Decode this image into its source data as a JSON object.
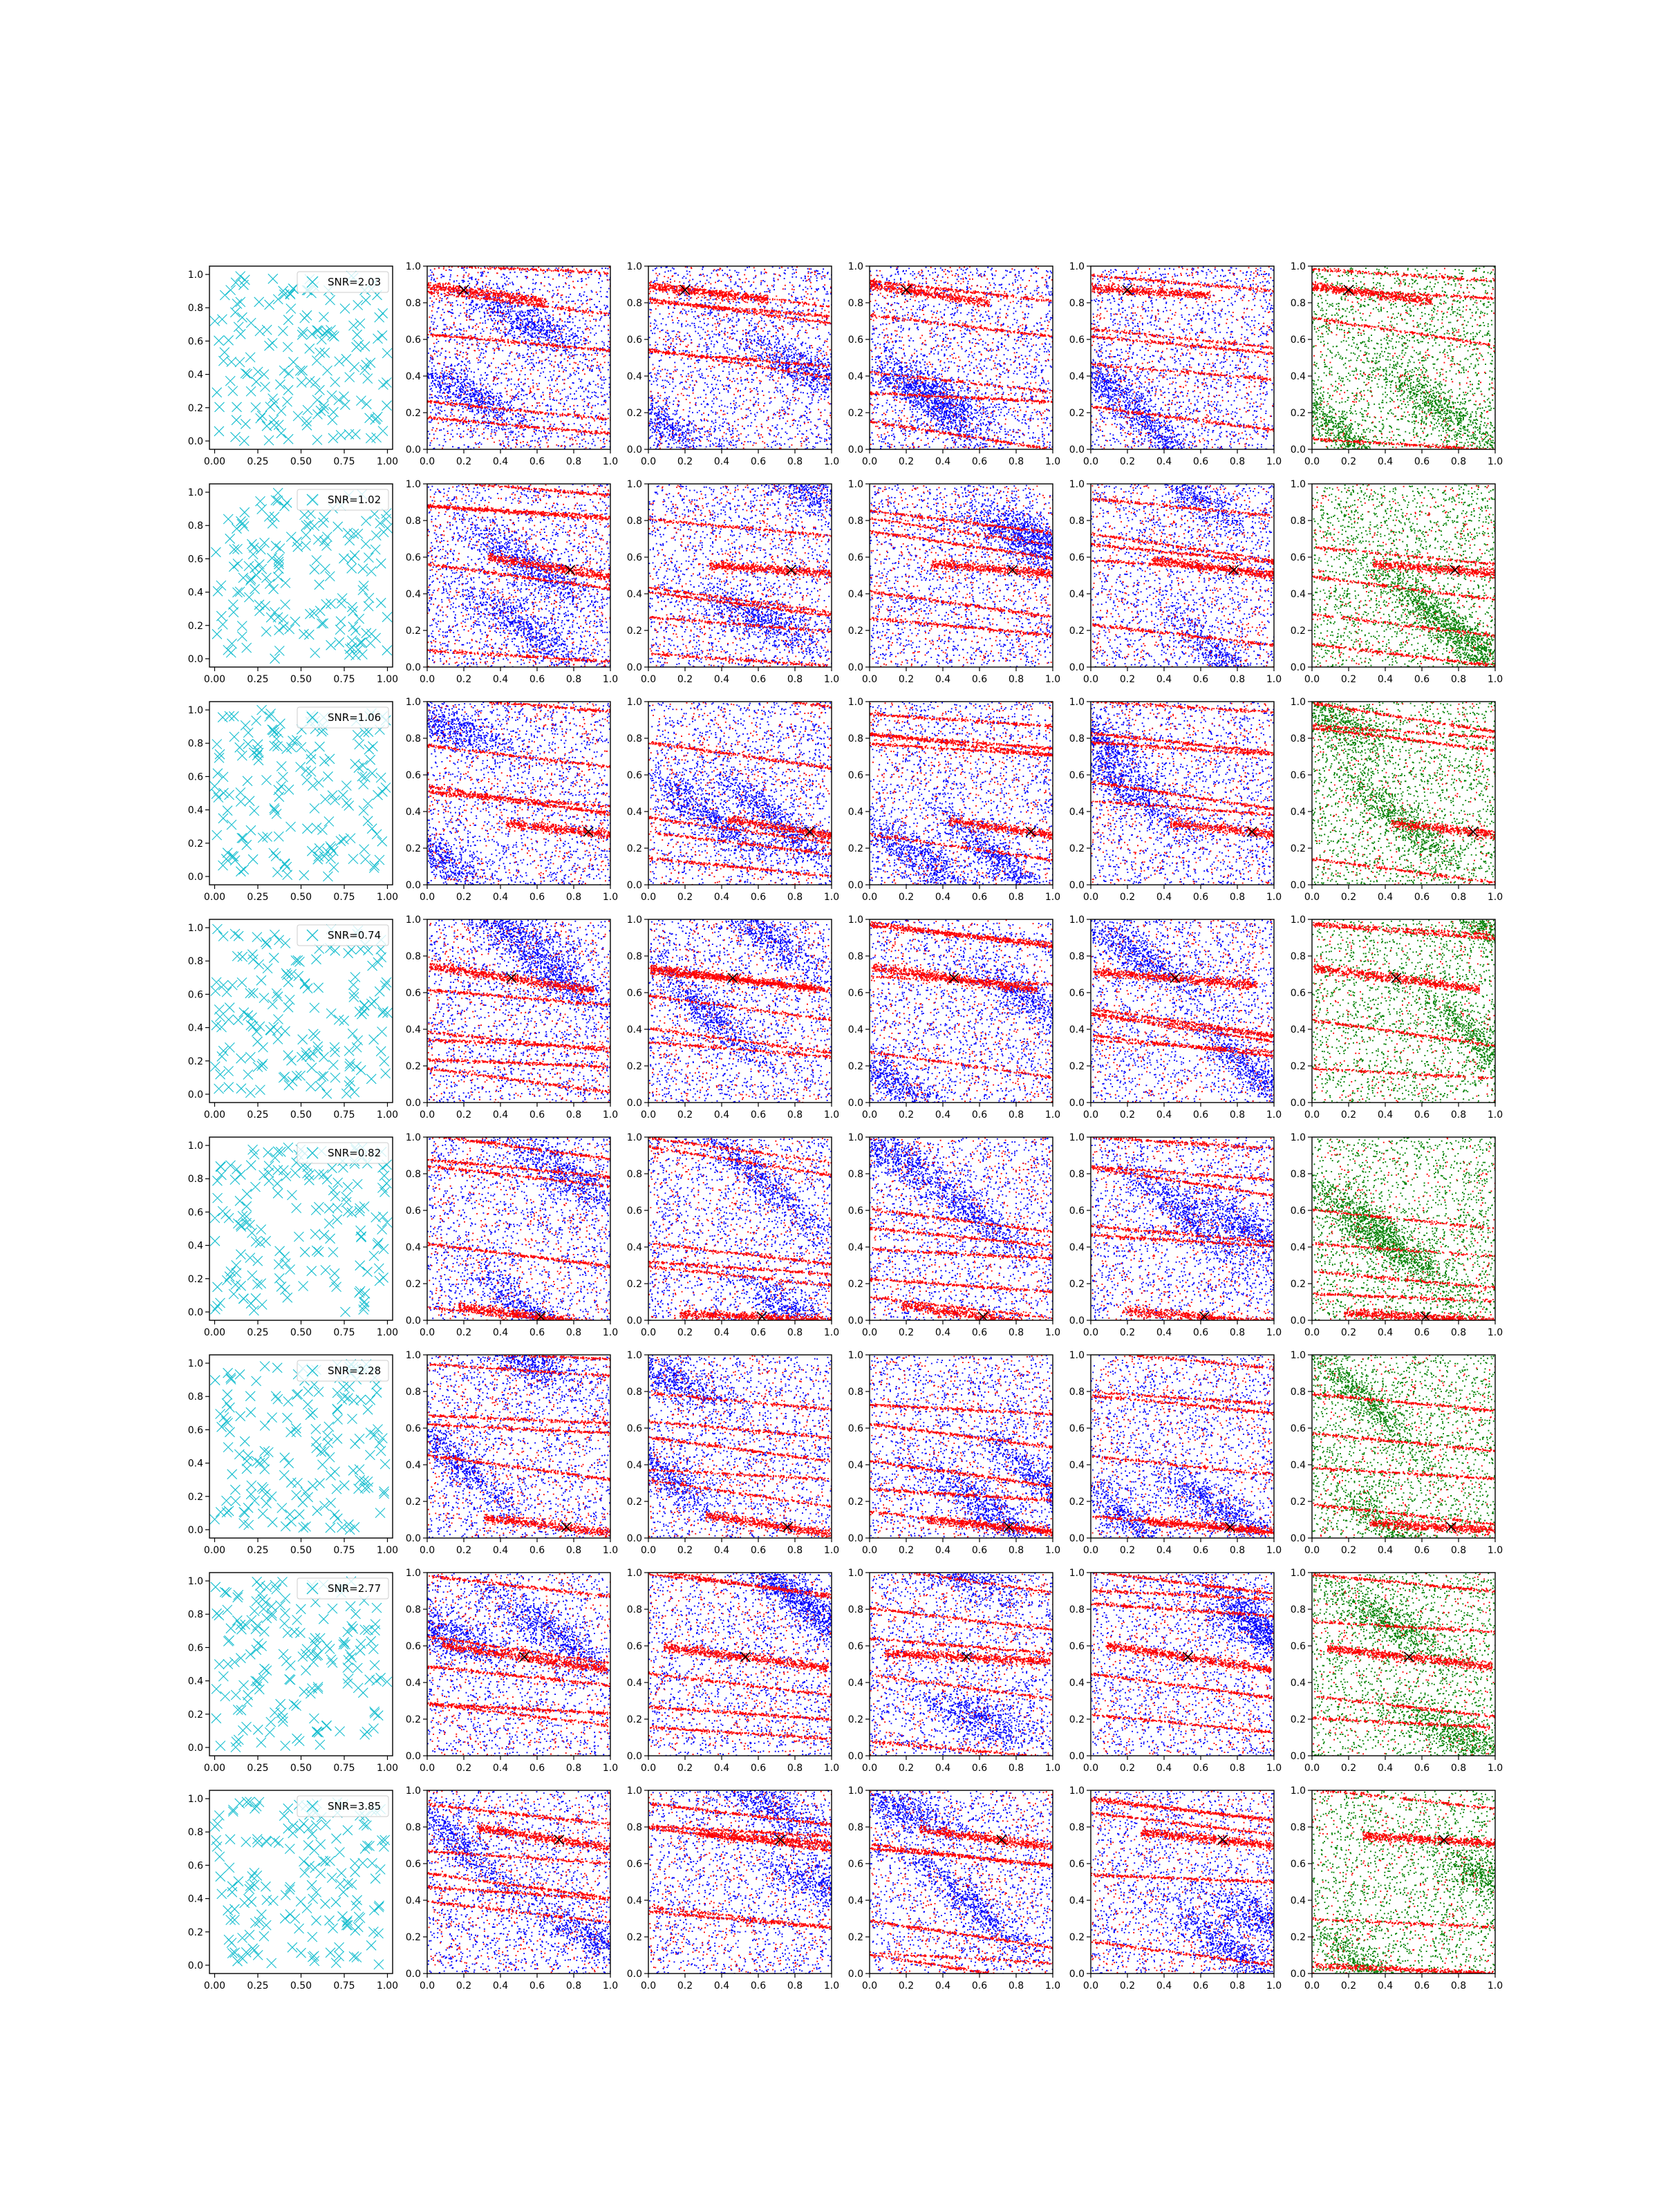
{
  "chart_data": {
    "type": "scatter",
    "layout": {
      "rows": 8,
      "cols": 6
    },
    "colors": {
      "cyan": "#17becf",
      "blue": "#0000ff",
      "red": "#ff0000",
      "green": "#008000",
      "marker": "#000000"
    },
    "axes": {
      "first_col": {
        "xlim": [
          -0.03,
          1.03
        ],
        "ylim": [
          -0.05,
          1.05
        ],
        "xticks": [
          0.0,
          0.25,
          0.5,
          0.75,
          1.0
        ],
        "xtick_labels": [
          "0.00",
          "0.25",
          "0.50",
          "0.75",
          "1.00"
        ],
        "yticks": [
          0.0,
          0.2,
          0.4,
          0.6,
          0.8,
          1.0
        ],
        "ytick_labels": [
          "0.0",
          "0.2",
          "0.4",
          "0.6",
          "0.8",
          "1.0"
        ]
      },
      "other_cols": {
        "xlim": [
          0,
          1
        ],
        "ylim": [
          0,
          1
        ],
        "xticks": [
          0.0,
          0.2,
          0.4,
          0.6,
          0.8,
          1.0
        ],
        "xtick_labels": [
          "0.0",
          "0.2",
          "0.4",
          "0.6",
          "0.8",
          "1.0"
        ],
        "yticks": [
          0.0,
          0.2,
          0.4,
          0.6,
          0.8,
          1.0
        ],
        "ytick_labels": [
          "0.0",
          "0.2",
          "0.4",
          "0.6",
          "0.8",
          "1.0"
        ]
      }
    },
    "panel_series": [
      "cyan x markers",
      "red/blue scatter",
      "red/blue scatter",
      "red/blue scatter",
      "red/blue scatter",
      "green/red scatter"
    ],
    "rows": [
      {
        "legend": "SNR=2.03",
        "x_marker": [
          0.2,
          0.87
        ]
      },
      {
        "legend": "SNR=1.02",
        "x_marker": [
          0.78,
          0.53
        ]
      },
      {
        "legend": "SNR=1.06",
        "x_marker": [
          0.88,
          0.29
        ]
      },
      {
        "legend": "SNR=0.74",
        "x_marker": [
          0.46,
          0.68
        ]
      },
      {
        "legend": "SNR=0.82",
        "x_marker": [
          0.62,
          0.02
        ]
      },
      {
        "legend": "SNR=2.28",
        "x_marker": [
          0.76,
          0.06
        ]
      },
      {
        "legend": "SNR=2.77",
        "x_marker": [
          0.53,
          0.54
        ]
      },
      {
        "legend": "SNR=3.85",
        "x_marker": [
          0.72,
          0.73
        ]
      }
    ]
  }
}
